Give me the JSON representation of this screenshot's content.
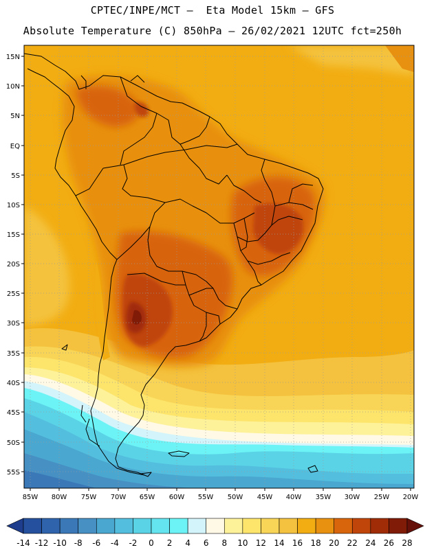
{
  "header": {
    "line1": "CPTEC/INPE/MCT –  Eta Model 15km – GFS",
    "line2": "Absolute Temperature (C) 850hPa – 26/02/2021 12UTC fct=250h"
  },
  "map": {
    "lat_labels": [
      "15N",
      "10N",
      "5N",
      "EQ",
      "5S",
      "10S",
      "15S",
      "20S",
      "25S",
      "30S",
      "35S",
      "40S",
      "45S",
      "50S",
      "55S"
    ],
    "lon_labels": [
      "85W",
      "80W",
      "75W",
      "70W",
      "65W",
      "60W",
      "55W",
      "50W",
      "45W",
      "40W",
      "35W",
      "30W",
      "25W",
      "20W"
    ]
  },
  "colorbar": {
    "labels": [
      "-14",
      "-12",
      "-10",
      "-8",
      "-6",
      "-4",
      "-2",
      "0",
      "2",
      "4",
      "6",
      "8",
      "10",
      "12",
      "14",
      "16",
      "18",
      "20",
      "22",
      "24",
      "26",
      "28"
    ],
    "colors": [
      "#1e3d8c",
      "#24509e",
      "#2f64ad",
      "#3a78b8",
      "#4690c3",
      "#4aa7cf",
      "#54bede",
      "#5ad3e6",
      "#63e4ee",
      "#6cf3f5",
      "#d2f4fa",
      "#fff9e6",
      "#fdf29a",
      "#fde56c",
      "#f8d556",
      "#f4c23e",
      "#f2ad12",
      "#e8900f",
      "#d8640c",
      "#bf450a",
      "#a02c07",
      "#7f1b06",
      "#66100a"
    ]
  }
}
